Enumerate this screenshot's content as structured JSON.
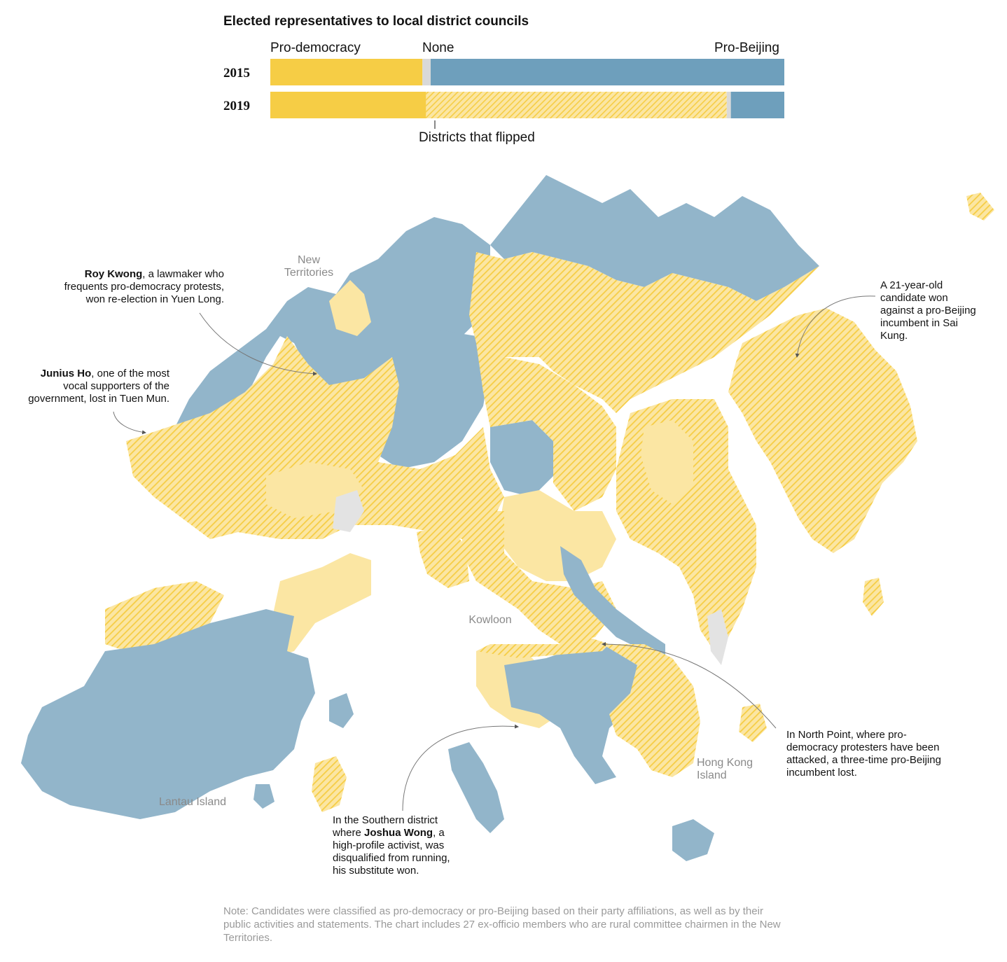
{
  "chart": {
    "title": "Elected representatives to local district councils",
    "labels": {
      "pro_democracy": "Pro-democracy",
      "none": "None",
      "pro_beijing": "Pro-Beijing"
    },
    "flipped_label": "Districts that flipped",
    "colors": {
      "pro_democracy": "#f6cd45",
      "none": "#d9d9d9",
      "pro_beijing": "#6e9fbc",
      "flipped_hatch": "#f6cd45"
    }
  },
  "chart_data": {
    "type": "bar",
    "categories": [
      "2015",
      "2019"
    ],
    "series": [
      {
        "name": "Pro-democracy",
        "values": [
          0.296,
          0.303
        ]
      },
      {
        "name": "Districts that flipped",
        "values": [
          0,
          0.585
        ]
      },
      {
        "name": "None",
        "values": [
          0.016,
          0.008
        ]
      },
      {
        "name": "Pro-Beijing",
        "values": [
          0.688,
          0.104
        ]
      }
    ],
    "stacked": true,
    "normalized": true
  },
  "map": {
    "places": {
      "new_territories_1": "New",
      "new_territories_2": "Territories",
      "kowloon": "Kowloon",
      "hong_kong_island_1": "Hong Kong",
      "hong_kong_island_2": "Island",
      "lantau": "Lantau Island"
    },
    "annotations": {
      "roy_kwong_name": "Roy Kwong",
      "roy_kwong_text_1": ", a lawmaker who",
      "roy_kwong_text_2": "frequents pro-democracy protests,",
      "roy_kwong_text_3": "won re-election in Yuen Long.",
      "junius_ho_name": "Junius Ho",
      "junius_ho_text_1": ", one of the most",
      "junius_ho_text_2": "vocal supporters of the",
      "junius_ho_text_3": "government, lost in Tuen Mun.",
      "sai_kung_1": "A 21-year-old",
      "sai_kung_2": "candidate won",
      "sai_kung_3": "against a pro-Beijing",
      "sai_kung_4": "incumbent in Sai",
      "sai_kung_5": "Kung.",
      "north_point_1": "In North Point, where pro-",
      "north_point_2": "democracy protesters have been",
      "north_point_3": "attacked, a three-time pro-Beijing",
      "north_point_4": "incumbent lost.",
      "southern_1": "In the Southern district",
      "southern_2a": "where ",
      "southern_name": "Joshua Wong",
      "southern_2b": ", a",
      "southern_3": "high-profile activist, was",
      "southern_4": "disqualified from running,",
      "southern_5": "his substitute won."
    }
  },
  "note": "Note: Candidates were classified as pro-democracy or pro-Beijing based on their party affiliations, as well as by their public activities and statements. The chart includes 27 ex-officio members who are rural committee chairmen in the New Territories."
}
